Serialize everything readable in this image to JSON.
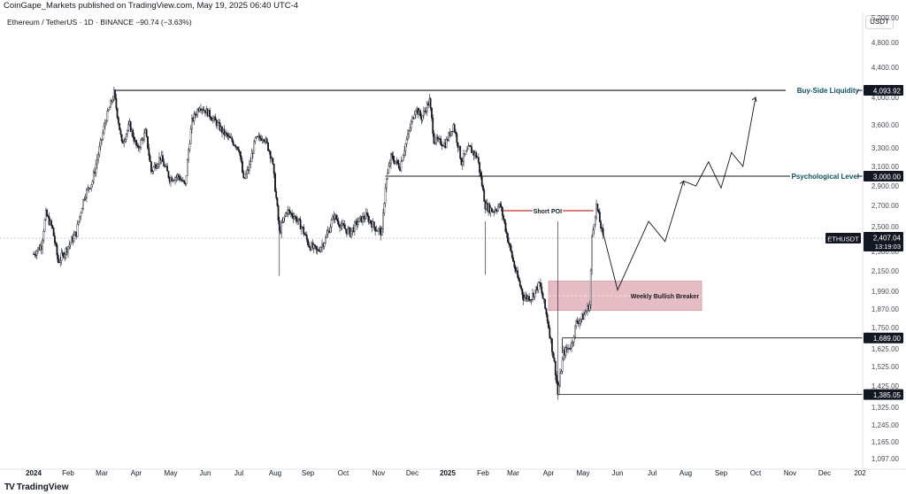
{
  "header": {
    "publisher": "CoinGape_Markets published on TradingView.com, May 19, 2025 06:40 UTC-4",
    "symbol_line": "Ethereum / TetherUS · 1D · BINANCE  ‭−90.74 (−3.63%)",
    "currency_unit": "USDT"
  },
  "footer": {
    "brand": "TradingView",
    "logo_icon": "tradingview-logo-icon"
  },
  "chart_data": {
    "type": "candlestick",
    "symbol": "ETHUSDT",
    "ylim": [
      1097.0,
      5200.0
    ],
    "y_ticks": [
      {
        "value": 1097,
        "label": "1,097.00"
      },
      {
        "value": 1165,
        "label": "1,165.00"
      },
      {
        "value": 1245,
        "label": "1,245.00"
      },
      {
        "value": 1325,
        "label": "1,325.00"
      },
      {
        "value": 1425,
        "label": "1,425.00"
      },
      {
        "value": 1525,
        "label": "1,525.00"
      },
      {
        "value": 1625,
        "label": "1,625.00"
      },
      {
        "value": 1750,
        "label": "1,750.00"
      },
      {
        "value": 1870,
        "label": "1,870.00"
      },
      {
        "value": 1990,
        "label": "1,990.00"
      },
      {
        "value": 2150,
        "label": "2,150.00"
      },
      {
        "value": 2300,
        "label": "2,300.00"
      },
      {
        "value": 2500,
        "label": "2,500.00"
      },
      {
        "value": 2700,
        "label": "2,700.00"
      },
      {
        "value": 2900,
        "label": "2,900.00"
      },
      {
        "value": 3100,
        "label": "3,100.00"
      },
      {
        "value": 3300,
        "label": "3,300.00"
      },
      {
        "value": 3600,
        "label": "3,600.00"
      },
      {
        "value": 4000,
        "label": "4,000.00"
      },
      {
        "value": 4400,
        "label": "4,400.00"
      },
      {
        "value": 4800,
        "label": "4,800.00"
      },
      {
        "value": 5200,
        "label": "5,200.00"
      }
    ],
    "x_ticks": [
      {
        "date": "2024-01-01",
        "label": "2024",
        "bold": true
      },
      {
        "date": "2024-02-01",
        "label": "Feb"
      },
      {
        "date": "2024-03-01",
        "label": "Mar"
      },
      {
        "date": "2024-04-01",
        "label": "Apr"
      },
      {
        "date": "2024-05-01",
        "label": "May"
      },
      {
        "date": "2024-06-01",
        "label": "Jun"
      },
      {
        "date": "2024-07-01",
        "label": "Jul"
      },
      {
        "date": "2024-08-01",
        "label": "Aug"
      },
      {
        "date": "2024-09-01",
        "label": "Sep"
      },
      {
        "date": "2024-10-01",
        "label": "Oct"
      },
      {
        "date": "2024-11-01",
        "label": "Nov"
      },
      {
        "date": "2024-12-01",
        "label": "Dec"
      },
      {
        "date": "2025-01-01",
        "label": "2025",
        "bold": true
      },
      {
        "date": "2025-02-01",
        "label": "Feb"
      },
      {
        "date": "2025-03-01",
        "label": "Mar"
      },
      {
        "date": "2025-04-01",
        "label": "Apr"
      },
      {
        "date": "2025-05-01",
        "label": "May"
      },
      {
        "date": "2025-06-01",
        "label": "Jun"
      },
      {
        "date": "2025-07-01",
        "label": "Jul"
      },
      {
        "date": "2025-08-01",
        "label": "Aug"
      },
      {
        "date": "2025-09-01",
        "label": "Sep"
      },
      {
        "date": "2025-10-01",
        "label": "Oct"
      },
      {
        "date": "2025-11-01",
        "label": "Nov"
      },
      {
        "date": "2025-12-01",
        "label": "Dec"
      },
      {
        "date": "2026-01-01",
        "label": "202"
      }
    ],
    "price_path": [
      [
        "2024-01-01",
        2280
      ],
      [
        "2024-01-08",
        2350
      ],
      [
        "2024-01-12",
        2620
      ],
      [
        "2024-01-18",
        2480
      ],
      [
        "2024-01-23",
        2220
      ],
      [
        "2024-01-30",
        2310
      ],
      [
        "2024-02-08",
        2450
      ],
      [
        "2024-02-15",
        2800
      ],
      [
        "2024-02-22",
        2950
      ],
      [
        "2024-02-29",
        3350
      ],
      [
        "2024-03-05",
        3700
      ],
      [
        "2024-03-12",
        4050
      ],
      [
        "2024-03-19",
        3350
      ],
      [
        "2024-03-26",
        3600
      ],
      [
        "2024-04-02",
        3280
      ],
      [
        "2024-04-09",
        3500
      ],
      [
        "2024-04-14",
        3050
      ],
      [
        "2024-04-22",
        3200
      ],
      [
        "2024-04-30",
        2980
      ],
      [
        "2024-05-08",
        3000
      ],
      [
        "2024-05-14",
        2900
      ],
      [
        "2024-05-20",
        3650
      ],
      [
        "2024-05-27",
        3880
      ],
      [
        "2024-06-03",
        3780
      ],
      [
        "2024-06-10",
        3650
      ],
      [
        "2024-06-17",
        3500
      ],
      [
        "2024-06-24",
        3400
      ],
      [
        "2024-07-01",
        3300
      ],
      [
        "2024-07-05",
        2950
      ],
      [
        "2024-07-10",
        3100
      ],
      [
        "2024-07-15",
        3400
      ],
      [
        "2024-07-22",
        3450
      ],
      [
        "2024-07-29",
        3200
      ],
      [
        "2024-08-05",
        2450
      ],
      [
        "2024-08-12",
        2650
      ],
      [
        "2024-08-19",
        2600
      ],
      [
        "2024-08-26",
        2500
      ],
      [
        "2024-09-02",
        2350
      ],
      [
        "2024-09-09",
        2300
      ],
      [
        "2024-09-16",
        2400
      ],
      [
        "2024-09-23",
        2600
      ],
      [
        "2024-09-30",
        2500
      ],
      [
        "2024-10-07",
        2450
      ],
      [
        "2024-10-14",
        2550
      ],
      [
        "2024-10-21",
        2600
      ],
      [
        "2024-10-28",
        2500
      ],
      [
        "2024-11-04",
        2450
      ],
      [
        "2024-11-07",
        2900
      ],
      [
        "2024-11-12",
        3200
      ],
      [
        "2024-11-20",
        3100
      ],
      [
        "2024-11-27",
        3450
      ],
      [
        "2024-12-04",
        3850
      ],
      [
        "2024-12-09",
        3700
      ],
      [
        "2024-12-16",
        3950
      ],
      [
        "2024-12-20",
        3400
      ],
      [
        "2024-12-30",
        3350
      ],
      [
        "2025-01-06",
        3600
      ],
      [
        "2025-01-13",
        3150
      ],
      [
        "2025-01-20",
        3300
      ],
      [
        "2025-01-27",
        3200
      ],
      [
        "2025-02-03",
        2700
      ],
      [
        "2025-02-10",
        2650
      ],
      [
        "2025-02-17",
        2700
      ],
      [
        "2025-02-24",
        2400
      ],
      [
        "2025-03-03",
        2150
      ],
      [
        "2025-03-10",
        1950
      ],
      [
        "2025-03-17",
        1950
      ],
      [
        "2025-03-24",
        2050
      ],
      [
        "2025-03-31",
        1800
      ],
      [
        "2025-04-07",
        1500
      ],
      [
        "2025-04-09",
        1385
      ],
      [
        "2025-04-14",
        1600
      ],
      [
        "2025-04-21",
        1650
      ],
      [
        "2025-04-25",
        1780
      ],
      [
        "2025-05-01",
        1820
      ],
      [
        "2025-05-07",
        1900
      ],
      [
        "2025-05-09",
        2400
      ],
      [
        "2025-05-13",
        2700
      ],
      [
        "2025-05-16",
        2550
      ],
      [
        "2025-05-19",
        2407.04
      ]
    ],
    "projection": [
      [
        "2025-05-19",
        2450
      ],
      [
        "2025-06-01",
        2000
      ],
      [
        "2025-06-28",
        2550
      ],
      [
        "2025-07-13",
        2380
      ],
      [
        "2025-07-30",
        2950
      ],
      [
        "2025-08-10",
        2900
      ],
      [
        "2025-08-21",
        3150
      ],
      [
        "2025-09-01",
        2880
      ],
      [
        "2025-09-10",
        3250
      ],
      [
        "2025-09-20",
        3100
      ],
      [
        "2025-10-01",
        4000
      ]
    ],
    "levels": [
      {
        "name": "Buy-Side Liquidity",
        "price": 4093.92,
        "tag": "4,093.92",
        "from": "2024-03-12",
        "to": "2025-12-20"
      },
      {
        "name": "Psychological Level",
        "price": 3000.0,
        "tag": "3,000.00",
        "from": "2024-11-07",
        "to": "2025-12-20"
      },
      {
        "name": "",
        "price": 1689.0,
        "tag": "1,689.00",
        "from": "2025-04-13",
        "to": "2026-01-10"
      },
      {
        "name": "",
        "price": 1385.05,
        "tag": "1,385.05",
        "from": "2025-04-09",
        "to": "2026-01-10"
      }
    ],
    "zones": [
      {
        "label": "Weekly Bullish Breaker",
        "from": "2025-04-01",
        "to": "2025-08-15",
        "price_low": 1860,
        "price_high": 2070,
        "color": "#dea7b0"
      }
    ],
    "annotations": [
      {
        "label": "Short POI",
        "from": "2025-02-10",
        "to": "2025-05-12",
        "price": 2650,
        "color": "#c0392b"
      }
    ],
    "current_price": {
      "symbol": "ETHUSDT",
      "value": "2,407.04",
      "countdown": "13:19:03"
    },
    "colors": {
      "bull": "#089981",
      "bear": "#131722",
      "candle": "#131722",
      "zone": "#dea7b0",
      "poi": "#c0392b"
    },
    "grid": false
  }
}
